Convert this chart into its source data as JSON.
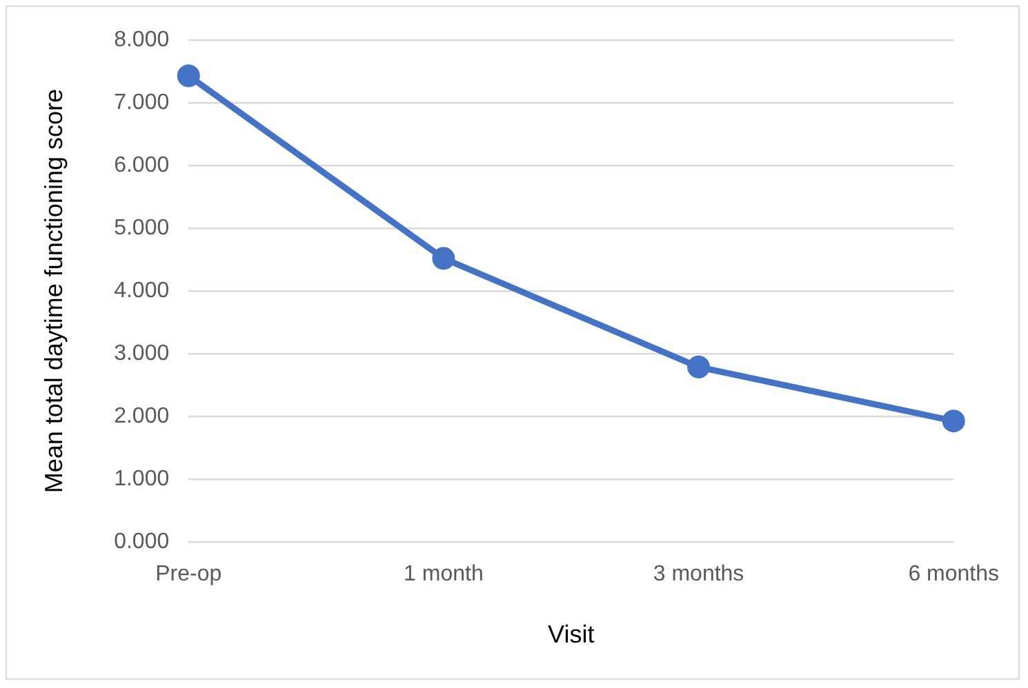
{
  "chart_data": {
    "type": "line",
    "xlabel": "Visit",
    "ylabel": "Mean total daytime functioning score",
    "categories": [
      "Pre-op",
      "1 month",
      "3 months",
      "6 months"
    ],
    "series": [
      {
        "color": "#4472c4",
        "values": [
          7.43,
          4.52,
          2.79,
          1.93
        ]
      }
    ],
    "ylim": [
      0,
      8
    ],
    "yticks": [
      {
        "value": 0,
        "label": "0.000"
      },
      {
        "value": 1,
        "label": "1.000"
      },
      {
        "value": 2,
        "label": "2.000"
      },
      {
        "value": 3,
        "label": "3.000"
      },
      {
        "value": 4,
        "label": "4.000"
      },
      {
        "value": 5,
        "label": "5.000"
      },
      {
        "value": 6,
        "label": "6.000"
      },
      {
        "value": 7,
        "label": "7.000"
      },
      {
        "value": 8,
        "label": "8.000"
      }
    ],
    "grid": "y",
    "legend": false,
    "marker": "circle",
    "line_style": "solid"
  }
}
